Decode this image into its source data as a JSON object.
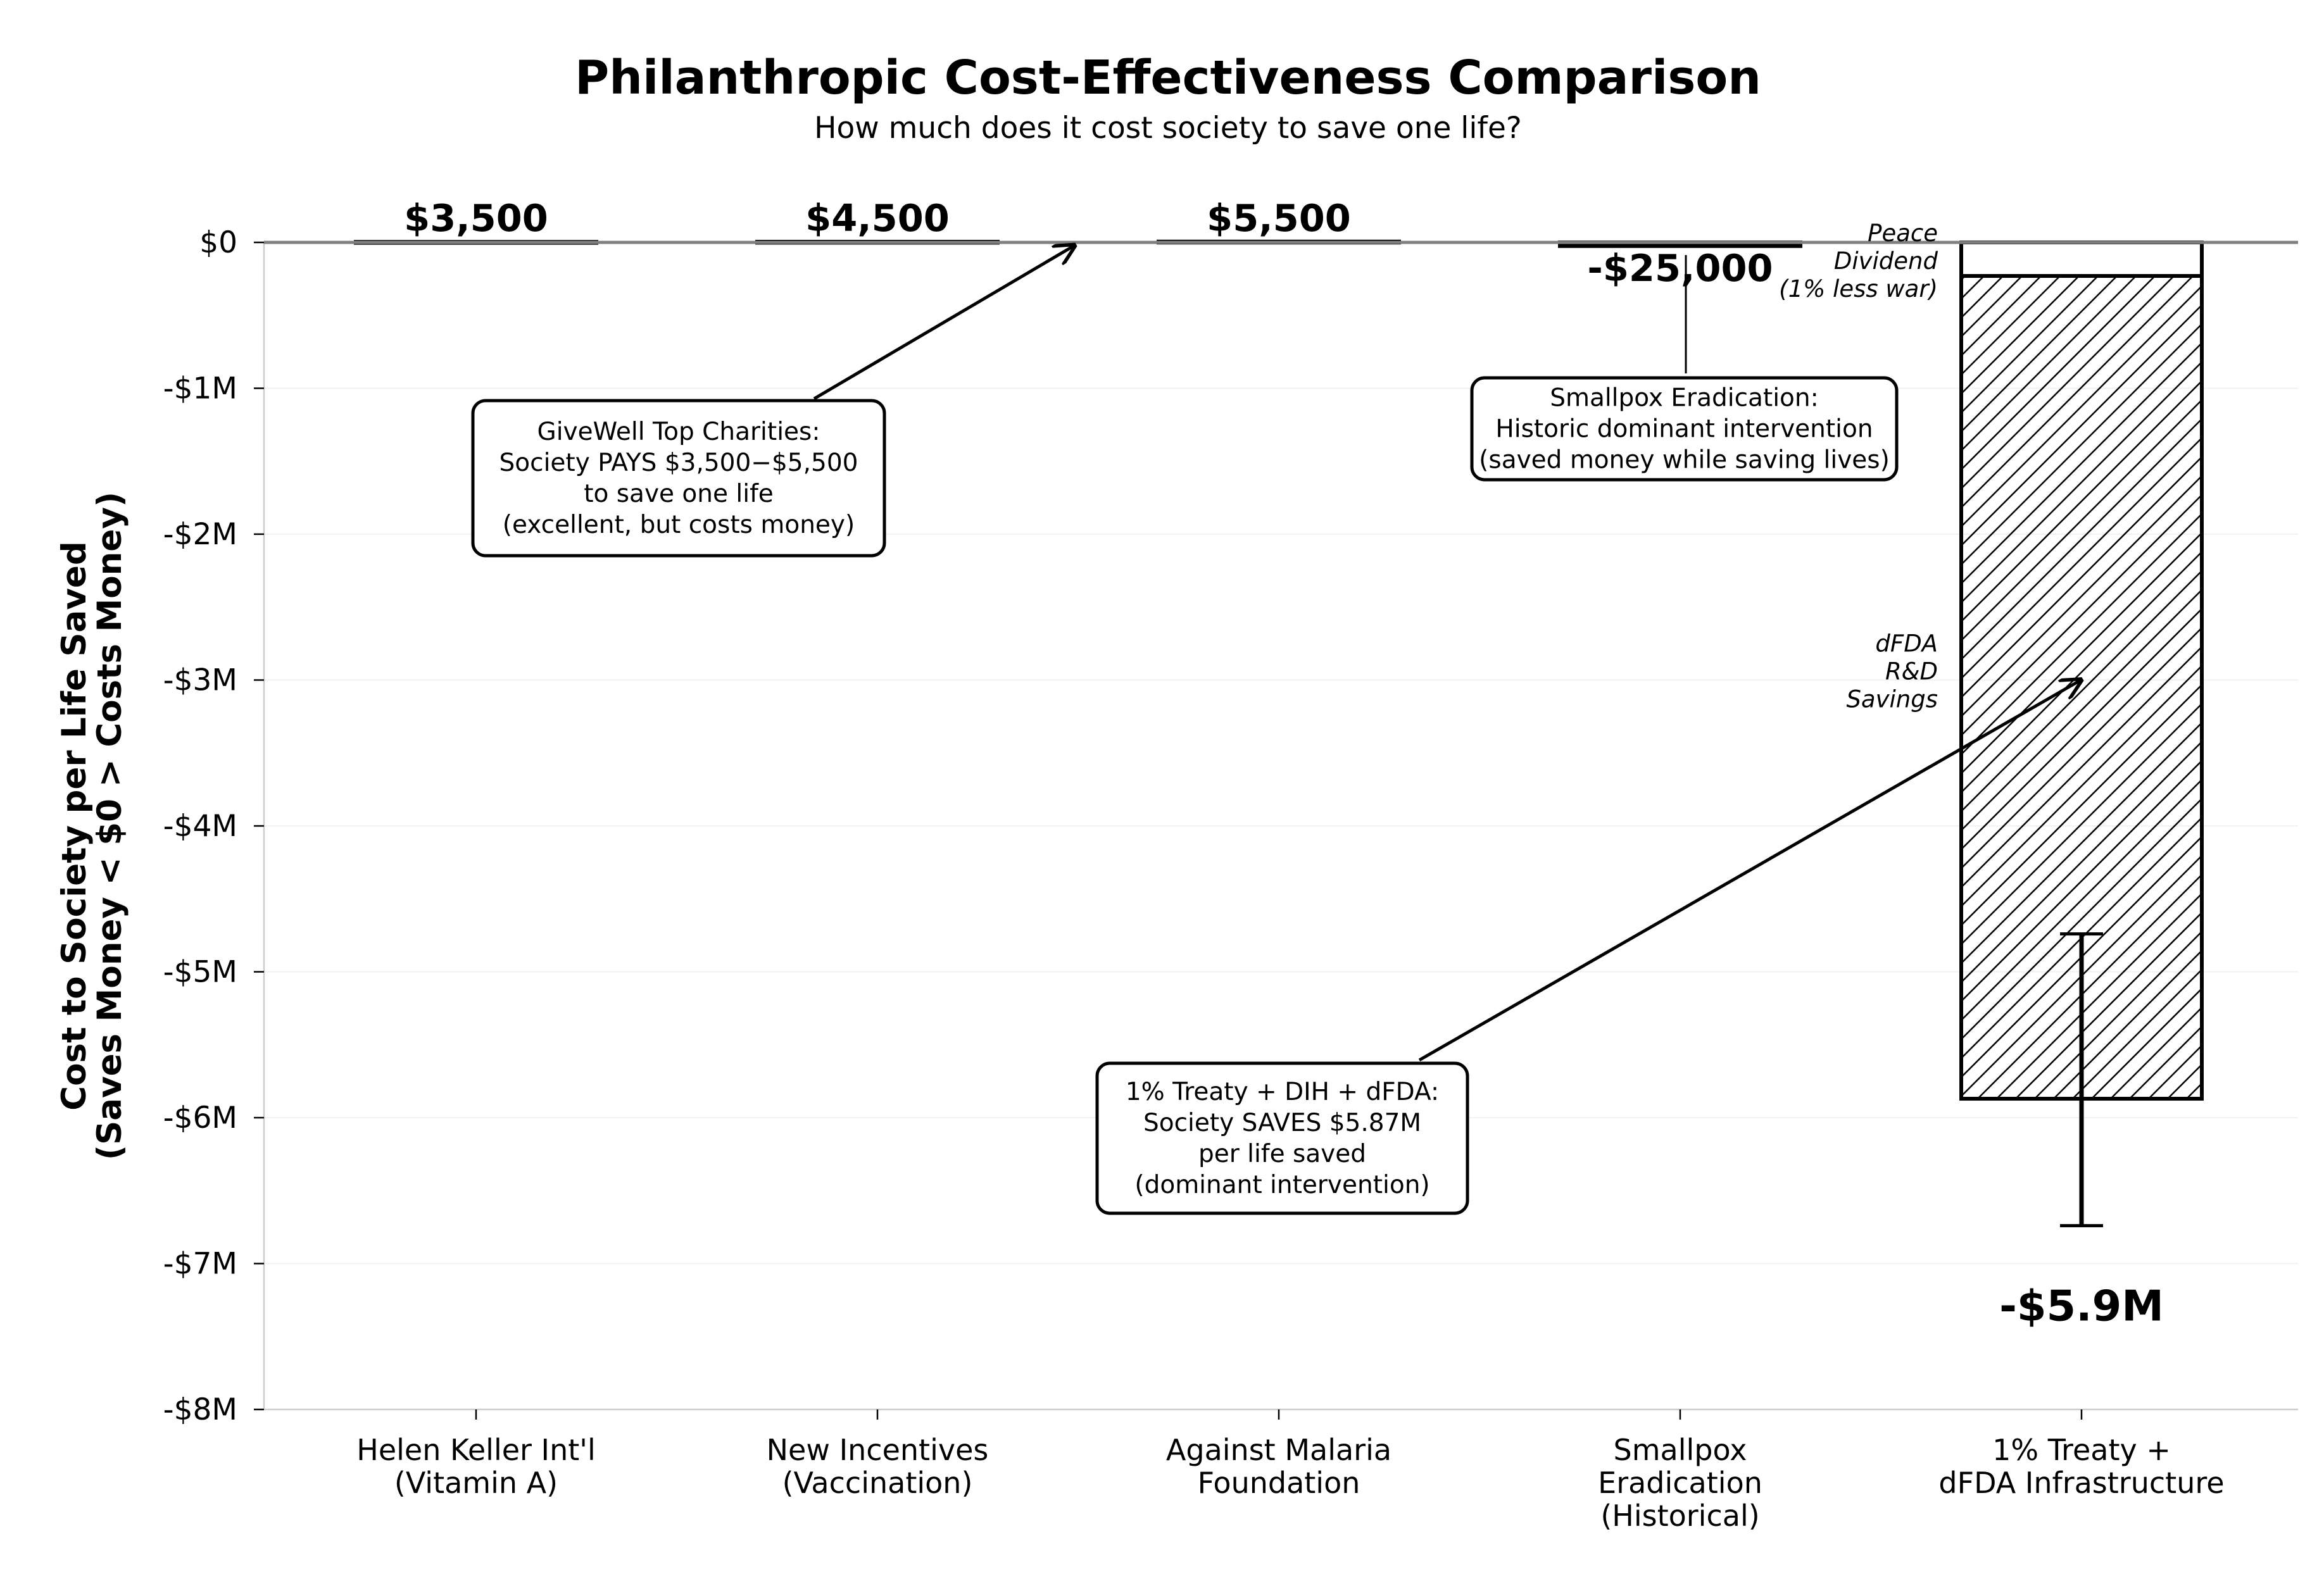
{
  "chart_data": {
    "type": "bar",
    "title": "Philanthropic Cost-Effectiveness Comparison",
    "subtitle": "How much does it cost society to save one life?",
    "ylabel_lines": [
      "Cost to Society per Life Saved",
      "(Saves Money < $0 > Costs Money)"
    ],
    "xlabel": "",
    "ylim": [
      -8000000,
      0
    ],
    "yticks": [
      {
        "value": 0,
        "label": "$0"
      },
      {
        "value": -1000000,
        "label": "-$1M"
      },
      {
        "value": -2000000,
        "label": "-$2M"
      },
      {
        "value": -3000000,
        "label": "-$3M"
      },
      {
        "value": -4000000,
        "label": "-$4M"
      },
      {
        "value": -5000000,
        "label": "-$5M"
      },
      {
        "value": -6000000,
        "label": "-$6M"
      },
      {
        "value": -7000000,
        "label": "-$7M"
      },
      {
        "value": -8000000,
        "label": "-$8M"
      }
    ],
    "grid": true,
    "categories": [
      {
        "lines": [
          "Helen Keller Int'l",
          "(Vitamin A)"
        ]
      },
      {
        "lines": [
          "New Incentives",
          "(Vaccination)"
        ]
      },
      {
        "lines": [
          "Against Malaria",
          "Foundation"
        ]
      },
      {
        "lines": [
          "Smallpox",
          "Eradication",
          "(Historical)"
        ]
      },
      {
        "lines": [
          "1% Treaty +",
          "dFDA Infrastructure"
        ]
      }
    ],
    "values": [
      3500,
      4500,
      5500,
      -25000,
      -5870000
    ],
    "value_labels": [
      "$3,500",
      "$4,500",
      "$5,500",
      "-$25,000",
      "-$5.9M"
    ],
    "stacked_components": [
      {
        "name": "Peace Dividend (1% less war)",
        "name_lines": [
          "Peace",
          "Dividend",
          "(1% less war)"
        ],
        "value": -230000,
        "hatch": false
      },
      {
        "name": "dFDA R&D Savings",
        "name_lines": [
          "dFDA",
          "R&D",
          "Savings"
        ],
        "value": -5640000,
        "hatch": true
      }
    ],
    "error_bar": {
      "category_index": 4,
      "low": -6740000,
      "high": -4740000
    },
    "annotations": [
      {
        "lines": [
          "GiveWell Top Charities:",
          "Society PAYS $3,500−$5,500",
          "to save one life",
          "(excellent, but costs money)"
        ],
        "arrow": true
      },
      {
        "lines": [
          "Smallpox Eradication:",
          "Historic dominant intervention",
          "(saved money while saving lives)"
        ],
        "arrow": false
      },
      {
        "lines": [
          "1% Treaty + DIH + dFDA:",
          "Society SAVES $5.87M",
          "per life saved",
          "(dominant intervention)"
        ],
        "arrow": true
      }
    ],
    "colors": {
      "bar_fill": "#ffffff",
      "bar_edge": "#000000",
      "zero_line": "#808080",
      "grid": "#f2f2f2",
      "axis": "#cccccc"
    }
  }
}
